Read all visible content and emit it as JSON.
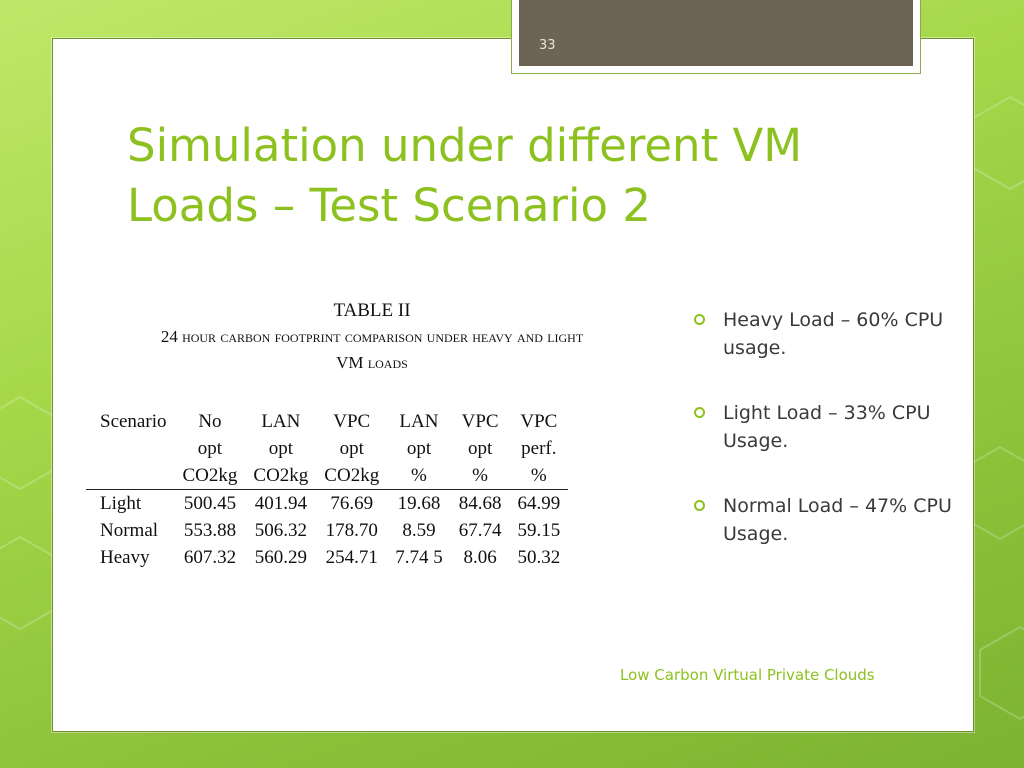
{
  "slide": {
    "number": "33",
    "title_line1": "Simulation under different VM",
    "title_line2": "Loads – Test Scenario 2",
    "footer": "Low Carbon Virtual Private Clouds"
  },
  "table": {
    "caption_title": "TABLE II",
    "caption_line1_lead": "24 ",
    "caption_line1_rest": "hour carbon footprint comparison under heavy and light",
    "caption_line2_lead": "VM ",
    "caption_line2_rest": "loads",
    "headers": [
      [
        "Scenario",
        "",
        ""
      ],
      [
        "No",
        "opt",
        "CO2kg"
      ],
      [
        "LAN",
        "opt",
        "CO2kg"
      ],
      [
        "VPC",
        "opt",
        "CO2kg"
      ],
      [
        "LAN",
        "opt",
        "%"
      ],
      [
        "VPC",
        "opt",
        "%"
      ],
      [
        "VPC",
        "perf.",
        "%"
      ]
    ],
    "rows": [
      [
        "Light",
        "500.45",
        "401.94",
        "76.69",
        "19.68",
        "84.68",
        "64.99"
      ],
      [
        "Normal",
        "553.88",
        "506.32",
        "178.70",
        "8.59",
        "67.74",
        "59.15"
      ],
      [
        "Heavy",
        "607.32",
        "560.29",
        "254.71",
        "7.74 5",
        "8.06",
        "50.32"
      ]
    ]
  },
  "bullets": [
    "Heavy Load – 60% CPU usage.",
    "Light Load – 33% CPU Usage.",
    "Normal Load – 47% CPU Usage."
  ],
  "colors": {
    "accent": "#8cc11f",
    "background": "#a6d84a",
    "tab": "#6d6456"
  }
}
